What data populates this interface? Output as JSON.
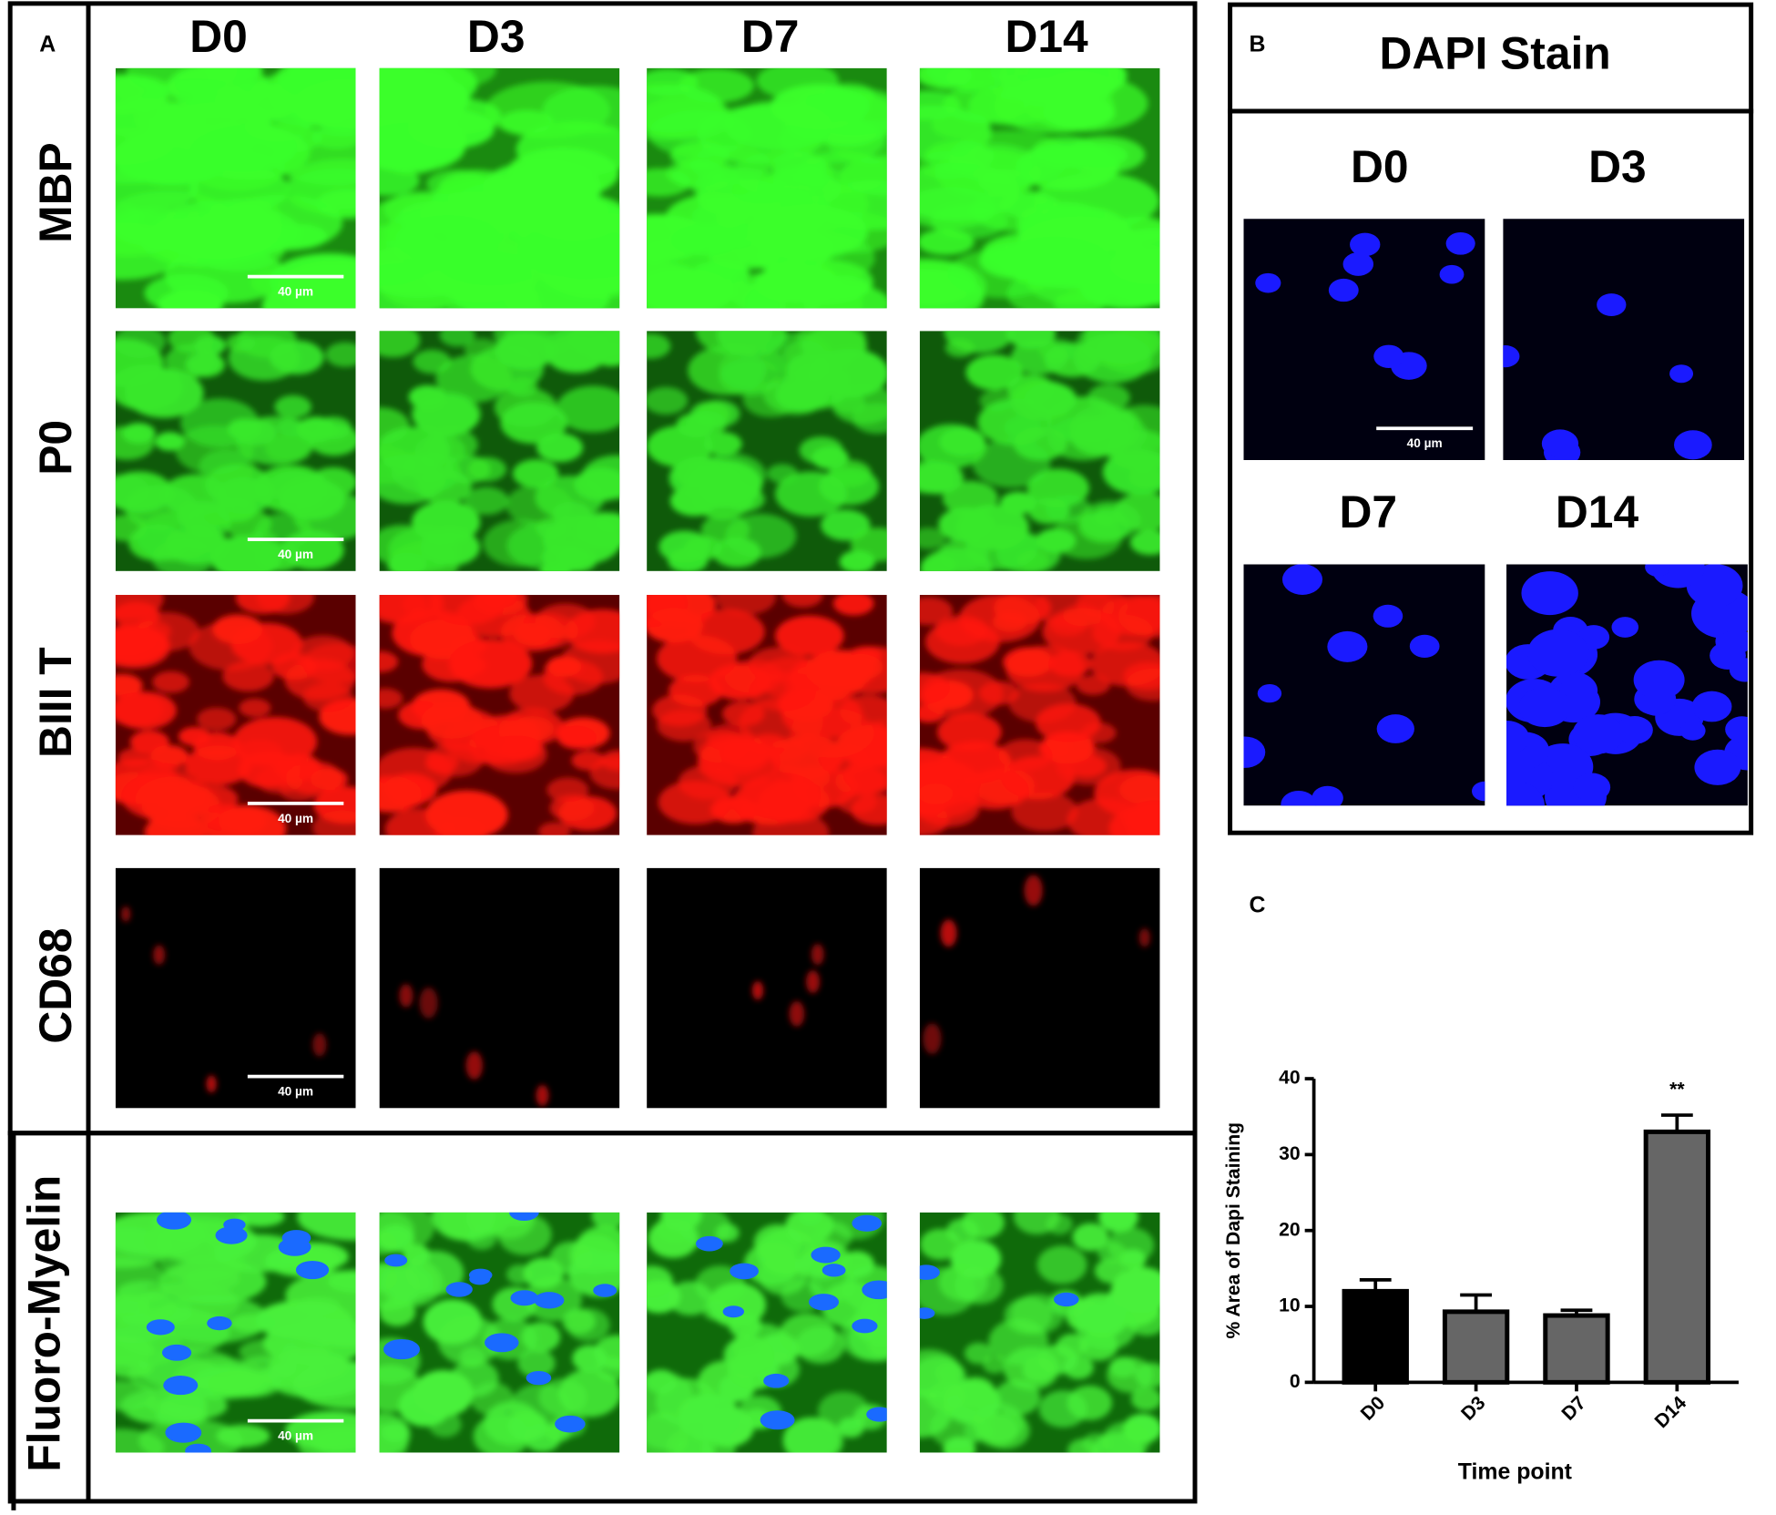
{
  "panel_a": {
    "label": "A",
    "columns": [
      "D0",
      "D3",
      "D7",
      "D14"
    ],
    "rows": [
      "MBP",
      "P0",
      "BIII T",
      "CD68"
    ],
    "fluoro_row": "Fluoro-Myelin",
    "scale_bar": "40 µm"
  },
  "panel_b": {
    "label": "B",
    "title": "DAPI Stain",
    "images": [
      "D0",
      "D3",
      "D7",
      "D14"
    ],
    "scale_bar": "40 µm"
  },
  "chart_data": {
    "type": "bar",
    "panel_label": "C",
    "x_label": "Time point",
    "y_label": "% Area of Dapi Staining",
    "categories": [
      "D0",
      "D3",
      "D7",
      "D14"
    ],
    "values": [
      12,
      9.3,
      8.8,
      33
    ],
    "errors": [
      1.5,
      2.2,
      0.7,
      2.2
    ],
    "value_annotations": [
      null,
      null,
      null,
      "**"
    ],
    "colors": [
      "#000000",
      "#666666",
      "#666666",
      "#666666"
    ],
    "ylim": [
      0,
      40
    ],
    "yticks": [
      0,
      10,
      20,
      30,
      40
    ]
  }
}
